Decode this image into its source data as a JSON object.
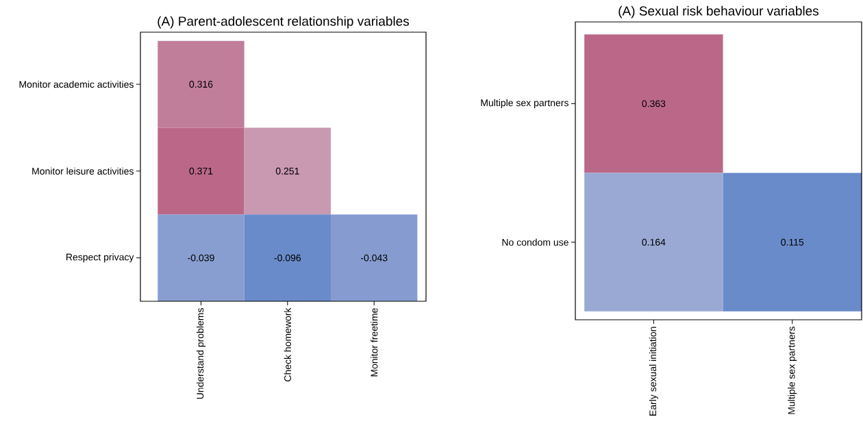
{
  "chart_data": [
    {
      "type": "heatmap",
      "title": "(A) Parent-adolescent relationship variables",
      "categories": [
        "Understand problems",
        "Check homework",
        "Monitor freetime"
      ],
      "y_categories": [
        "Monitor academic activities",
        "Monitor leisure activities",
        "Respect privacy"
      ],
      "cells": [
        [
          0.316,
          null,
          null
        ],
        [
          0.371,
          0.251,
          null
        ],
        [
          -0.039,
          -0.096,
          -0.043
        ]
      ],
      "data_labels": true
    },
    {
      "type": "heatmap",
      "title": "(A) Sexual risk behaviour variables",
      "categories": [
        "Early sexual initiation",
        "Multiple sex partners"
      ],
      "y_categories": [
        "Multiple sex partners",
        "No condom use"
      ],
      "cells": [
        [
          0.363,
          null
        ],
        [
          0.164,
          0.115
        ]
      ],
      "data_labels": true
    }
  ]
}
